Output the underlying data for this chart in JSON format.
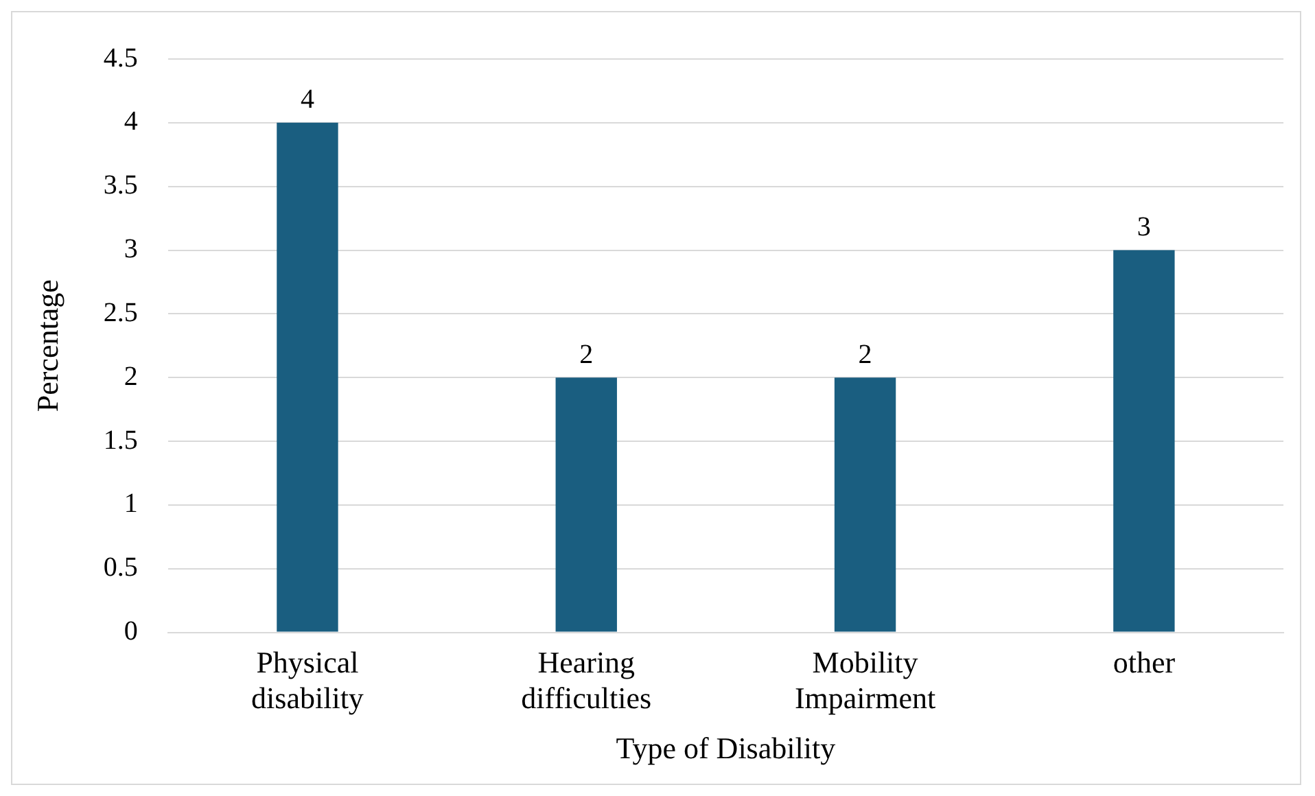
{
  "chart_data": {
    "type": "bar",
    "xlabel": "Type of Disability",
    "ylabel": "Percentage",
    "categories": [
      "Physical disability",
      "Hearing difficulties",
      "Mobility Impairment",
      "other"
    ],
    "values": [
      4,
      2,
      2,
      3
    ],
    "color": "#1a5e80",
    "ylim": [
      0,
      4.5
    ],
    "yticks": [
      0,
      0.5,
      1,
      1.5,
      2,
      2.5,
      3,
      3.5,
      4,
      4.5
    ],
    "grid": "y",
    "data_labels": true,
    "legend": false
  }
}
